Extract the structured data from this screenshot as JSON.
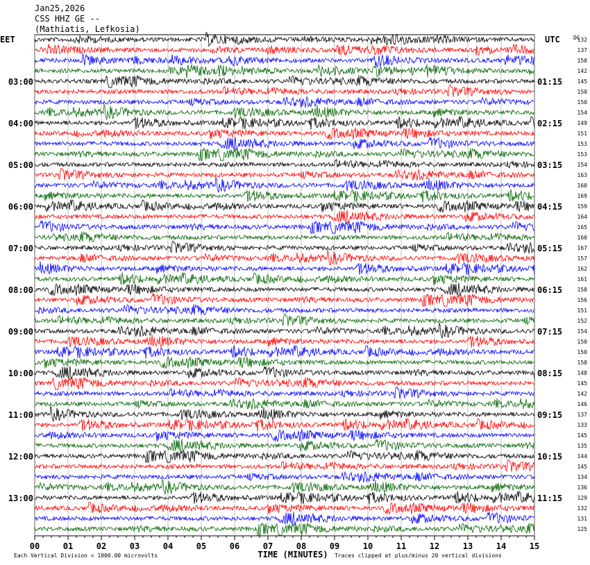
{
  "header": {
    "date": "Jan25,2026",
    "station": "CSS HHZ GE --",
    "location": "(Mathiatis, Lefkosia)"
  },
  "left_axis": {
    "title": "EET",
    "labels": [
      "03:00",
      "04:00",
      "05:00",
      "06:00",
      "07:00",
      "08:00",
      "09:00",
      "10:00",
      "11:00",
      "12:00",
      "13:00"
    ]
  },
  "right_axis": {
    "title": "UTC",
    "labels": [
      "01:15",
      "02:15",
      "03:15",
      "04:15",
      "05:15",
      "06:15",
      "07:15",
      "08:15",
      "09:15",
      "10:15",
      "11:15"
    ]
  },
  "dc": {
    "title": "DC",
    "values": [
      "132",
      "137",
      "150",
      "142",
      "145",
      "150",
      "150",
      "154",
      "149",
      "151",
      "153",
      "153",
      "154",
      "163",
      "160",
      "169",
      "159",
      "164",
      "165",
      "160",
      "167",
      "157",
      "162",
      "161",
      "158",
      "156",
      "151",
      "152",
      "154",
      "150",
      "150",
      "150",
      "148",
      "145",
      "142",
      "146",
      "137",
      "133",
      "145",
      "135",
      "144",
      "145",
      "134",
      "136",
      "129",
      "132",
      "131",
      "125"
    ]
  },
  "x_axis": {
    "title": "TIME (MINUTES)",
    "ticks": [
      "00",
      "01",
      "02",
      "03",
      "04",
      "05",
      "06",
      "07",
      "08",
      "09",
      "10",
      "11",
      "12",
      "13",
      "14",
      "15"
    ]
  },
  "footer": {
    "scale": "Each Vertical Division = 1000.00 microvolts",
    "clip": "Traces clipped at plus/minus 20 vertical divisions"
  },
  "trace_colors": [
    "#000000",
    "#ff0000",
    "#0000ff",
    "#006400"
  ]
}
